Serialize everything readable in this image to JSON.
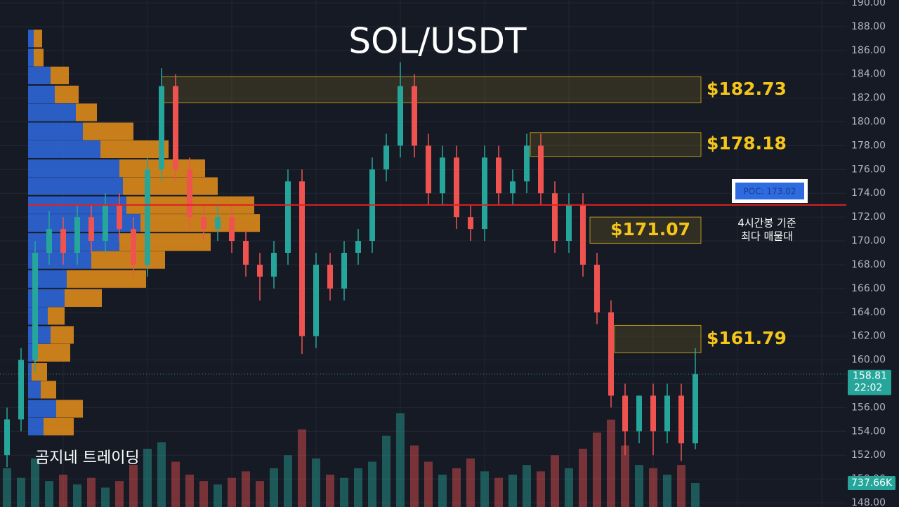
{
  "chart_data": {
    "type": "candlestick",
    "title": "SOL/USDT",
    "watermark": "곰지네 트레이딩",
    "up_color": "#26a69a",
    "down_color": "#ef5350",
    "ylim": [
      148,
      190
    ],
    "yticks": [
      {
        "value": 148,
        "label": "148.00"
      },
      {
        "value": 150,
        "label": "150.00"
      },
      {
        "value": 152,
        "label": "152.00"
      },
      {
        "value": 154,
        "label": "154.00"
      },
      {
        "value": 156,
        "label": "156.00"
      },
      {
        "value": 158,
        "label": "158.00"
      },
      {
        "value": 160,
        "label": "160.00"
      },
      {
        "value": 162,
        "label": "162.00"
      },
      {
        "value": 164,
        "label": "164.00"
      },
      {
        "value": 166,
        "label": "166.00"
      },
      {
        "value": 168,
        "label": "168.00"
      },
      {
        "value": 170,
        "label": "170.00"
      },
      {
        "value": 172,
        "label": "172.00"
      },
      {
        "value": 174,
        "label": "174.00"
      },
      {
        "value": 176,
        "label": "176.00"
      },
      {
        "value": 178,
        "label": "178.00"
      },
      {
        "value": 180,
        "label": "180.00"
      },
      {
        "value": 182,
        "label": "182.00"
      },
      {
        "value": 184,
        "label": "184.00"
      },
      {
        "value": 186,
        "label": "186.00"
      },
      {
        "value": 188,
        "label": "188.00"
      },
      {
        "value": 190,
        "label": "190.00"
      }
    ],
    "grid": true,
    "open": [
      152,
      155,
      160,
      169,
      171,
      169,
      172,
      170,
      173,
      171,
      168,
      176,
      183,
      176,
      172,
      171,
      172,
      170,
      168,
      167,
      169,
      175,
      162,
      168,
      166,
      169,
      170,
      176,
      178,
      183,
      178,
      174,
      177,
      172,
      171,
      177,
      174,
      175,
      178,
      174,
      170,
      173,
      168,
      164,
      157,
      154,
      157,
      154,
      157,
      153
    ],
    "high": [
      156,
      161,
      170,
      172.5,
      172,
      173,
      173,
      174,
      174,
      172,
      177,
      184.5,
      184,
      177,
      173,
      173,
      173,
      171,
      169,
      170,
      176,
      176,
      169,
      169,
      170,
      171,
      177,
      179,
      185,
      184,
      179,
      178,
      178,
      173,
      178,
      178,
      176,
      179,
      179,
      175,
      174,
      174,
      169,
      165,
      158,
      157,
      158,
      158,
      158,
      161
    ],
    "low": [
      151,
      154,
      159,
      168,
      168,
      168,
      169,
      169,
      170,
      167,
      167,
      175,
      175,
      171,
      170,
      170,
      169,
      167,
      165,
      166,
      168,
      160.5,
      161,
      165,
      165,
      168,
      169,
      175,
      177,
      177,
      173,
      173,
      171,
      170,
      170,
      173,
      173,
      174,
      173,
      169,
      169,
      167,
      163,
      156,
      152,
      153,
      152,
      153,
      151.5,
      152.5
    ],
    "close": [
      155,
      160,
      169,
      171,
      169,
      172,
      170,
      173,
      171,
      168,
      176,
      183,
      176,
      172,
      171,
      172,
      170,
      168,
      167,
      169,
      175,
      162,
      168,
      166,
      169,
      170,
      176,
      178,
      183,
      178,
      174,
      177,
      172,
      171,
      177,
      174,
      175,
      178,
      174,
      170,
      173,
      168,
      164,
      157,
      154,
      157,
      154,
      157,
      153,
      158.81
    ],
    "last_price": 158.81,
    "last_time": "22:02",
    "volume": {
      "values": [
        1200,
        900,
        1500,
        800,
        1000,
        700,
        900,
        600,
        800,
        1300,
        1800,
        2000,
        1400,
        1000,
        800,
        700,
        900,
        1100,
        800,
        1200,
        1600,
        2400,
        1500,
        1000,
        900,
        1200,
        1400,
        2200,
        2900,
        1900,
        1400,
        1000,
        1200,
        1500,
        1100,
        900,
        1000,
        1300,
        1100,
        1600,
        1200,
        1800,
        2300,
        2700,
        1900,
        1300,
        1200,
        1000,
        1300,
        737.66
      ],
      "ylim": [
        0,
        4340
      ],
      "last_label": "737.66K"
    },
    "poc": {
      "value": 173.02,
      "label": "POC: 173.02",
      "color": "#e02020",
      "note": [
        "4시간봉 기준",
        "최다 매물대"
      ]
    },
    "zones": [
      {
        "value": 182.73,
        "label": "$182.73",
        "low": 181.6,
        "high": 183.8
      },
      {
        "value": 178.18,
        "label": "$178.18",
        "low": 177.1,
        "high": 179.1
      },
      {
        "value": 171.07,
        "label": "$171.07",
        "low": 169.8,
        "high": 172.0
      },
      {
        "value": 161.79,
        "label": "$161.79",
        "low": 160.6,
        "high": 162.9
      }
    ],
    "zone_color": "#f5c518",
    "profile": {
      "levels": [
        187.0,
        185.4,
        183.9,
        182.3,
        180.8,
        179.2,
        177.7,
        176.1,
        174.6,
        173.0,
        171.5,
        169.9,
        168.4,
        166.8,
        165.2,
        163.7,
        162.1,
        160.6,
        159.0,
        157.5,
        155.9,
        154.4
      ],
      "buy": [
        8,
        8,
        32,
        38,
        68,
        78,
        103,
        130,
        135,
        140,
        160,
        130,
        90,
        55,
        52,
        28,
        32,
        8,
        5,
        18,
        40,
        22
      ],
      "sell": [
        12,
        14,
        26,
        34,
        30,
        72,
        97,
        122,
        135,
        182,
        170,
        130,
        105,
        113,
        53,
        24,
        33,
        52,
        22,
        22,
        38,
        43
      ],
      "buy_color": "#2f6be0",
      "sell_color": "#e8901a"
    }
  }
}
